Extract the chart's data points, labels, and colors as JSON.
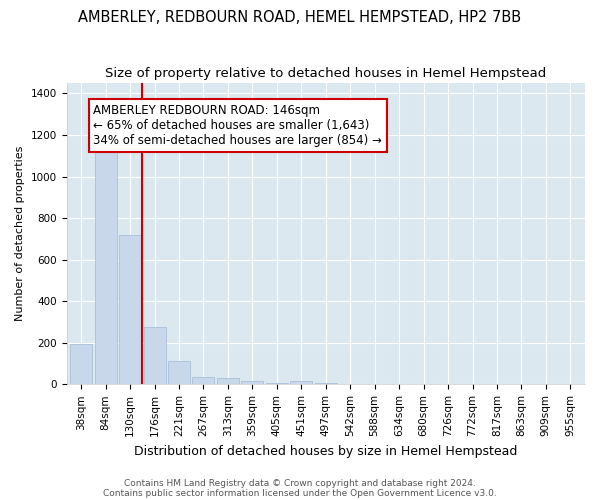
{
  "title": "AMBERLEY, REDBOURN ROAD, HEMEL HEMPSTEAD, HP2 7BB",
  "subtitle": "Size of property relative to detached houses in Hemel Hempstead",
  "xlabel": "Distribution of detached houses by size in Hemel Hempstead",
  "ylabel": "Number of detached properties",
  "footnote1": "Contains HM Land Registry data © Crown copyright and database right 2024.",
  "footnote2": "Contains public sector information licensed under the Open Government Licence v3.0.",
  "bar_labels": [
    "38sqm",
    "84sqm",
    "130sqm",
    "176sqm",
    "221sqm",
    "267sqm",
    "313sqm",
    "359sqm",
    "405sqm",
    "451sqm",
    "497sqm",
    "542sqm",
    "588sqm",
    "634sqm",
    "680sqm",
    "726sqm",
    "772sqm",
    "817sqm",
    "863sqm",
    "909sqm",
    "955sqm"
  ],
  "bar_values": [
    195,
    1150,
    720,
    275,
    110,
    35,
    30,
    15,
    5,
    15,
    5,
    0,
    0,
    0,
    0,
    0,
    0,
    0,
    0,
    0,
    0
  ],
  "bar_color": "#c8d8ea",
  "bar_edgecolor": "#a8c0d8",
  "vline_x": 2.5,
  "vline_color": "#cc0000",
  "annotation_title": "AMBERLEY REDBOURN ROAD: 146sqm",
  "annotation_line1": "← 65% of detached houses are smaller (1,643)",
  "annotation_line2": "34% of semi-detached houses are larger (854) →",
  "annotation_box_facecolor": "white",
  "annotation_box_edgecolor": "#cc0000",
  "ylim": [
    0,
    1450
  ],
  "yticks": [
    0,
    200,
    400,
    600,
    800,
    1000,
    1200,
    1400
  ],
  "plot_bg_color": "#dce8f0",
  "fig_bg_color": "#ffffff",
  "title_fontsize": 10.5,
  "subtitle_fontsize": 9.5,
  "xlabel_fontsize": 9,
  "ylabel_fontsize": 8,
  "tick_fontsize": 7.5,
  "annotation_fontsize": 8.5,
  "footnote_fontsize": 6.5,
  "footnote_color": "#555555"
}
